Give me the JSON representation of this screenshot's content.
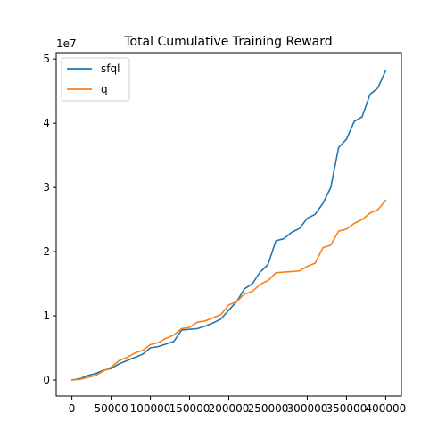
{
  "chart_data": {
    "type": "line",
    "title": "Total Cumulative Training Reward",
    "xlabel": "",
    "ylabel": "",
    "xlim": [
      -20000,
      420000
    ],
    "ylim": [
      -0.25,
      5.1
    ],
    "y_scale_label": "1e7",
    "x_ticks": [
      0,
      50000,
      100000,
      150000,
      200000,
      250000,
      300000,
      350000,
      400000
    ],
    "x_tick_labels": [
      "0",
      "50000",
      "100000",
      "150000",
      "200000",
      "250000",
      "300000",
      "350000",
      "400000"
    ],
    "y_ticks": [
      0,
      1,
      2,
      3,
      4,
      5
    ],
    "y_tick_labels": [
      "0",
      "1",
      "2",
      "3",
      "4",
      "5"
    ],
    "grid": false,
    "legend": "top-left",
    "series": [
      {
        "name": "sfql",
        "color": "#1f77b4",
        "x": [
          0,
          10000,
          20000,
          30000,
          40000,
          50000,
          60000,
          70000,
          80000,
          90000,
          100000,
          110000,
          120000,
          130000,
          140000,
          150000,
          160000,
          170000,
          180000,
          190000,
          200000,
          210000,
          220000,
          230000,
          240000,
          250000,
          260000,
          270000,
          280000,
          290000,
          300000,
          310000,
          320000,
          330000,
          340000,
          350000,
          360000,
          370000,
          380000,
          390000,
          400000
        ],
        "values": [
          0.0,
          0.02,
          0.07,
          0.1,
          0.15,
          0.18,
          0.25,
          0.3,
          0.35,
          0.4,
          0.5,
          0.52,
          0.56,
          0.6,
          0.78,
          0.79,
          0.8,
          0.84,
          0.89,
          0.95,
          1.09,
          1.22,
          1.42,
          1.5,
          1.68,
          1.8,
          2.17,
          2.2,
          2.3,
          2.36,
          2.52,
          2.58,
          2.75,
          3.0,
          3.62,
          3.75,
          4.03,
          4.1,
          4.45,
          4.55,
          4.82
        ]
      },
      {
        "name": "q",
        "color": "#ff7f0e",
        "x": [
          0,
          10000,
          20000,
          30000,
          40000,
          50000,
          60000,
          70000,
          80000,
          90000,
          100000,
          110000,
          120000,
          130000,
          140000,
          150000,
          160000,
          170000,
          180000,
          190000,
          200000,
          210000,
          220000,
          230000,
          240000,
          250000,
          260000,
          270000,
          280000,
          290000,
          300000,
          310000,
          320000,
          330000,
          340000,
          350000,
          360000,
          370000,
          380000,
          390000,
          400000
        ],
        "values": [
          0.0,
          0.01,
          0.04,
          0.07,
          0.14,
          0.2,
          0.3,
          0.35,
          0.42,
          0.46,
          0.55,
          0.58,
          0.65,
          0.7,
          0.8,
          0.82,
          0.9,
          0.92,
          0.97,
          1.02,
          1.17,
          1.22,
          1.34,
          1.38,
          1.49,
          1.55,
          1.67,
          1.68,
          1.69,
          1.7,
          1.77,
          1.82,
          2.06,
          2.1,
          2.32,
          2.35,
          2.44,
          2.5,
          2.6,
          2.65,
          2.8
        ]
      }
    ]
  }
}
